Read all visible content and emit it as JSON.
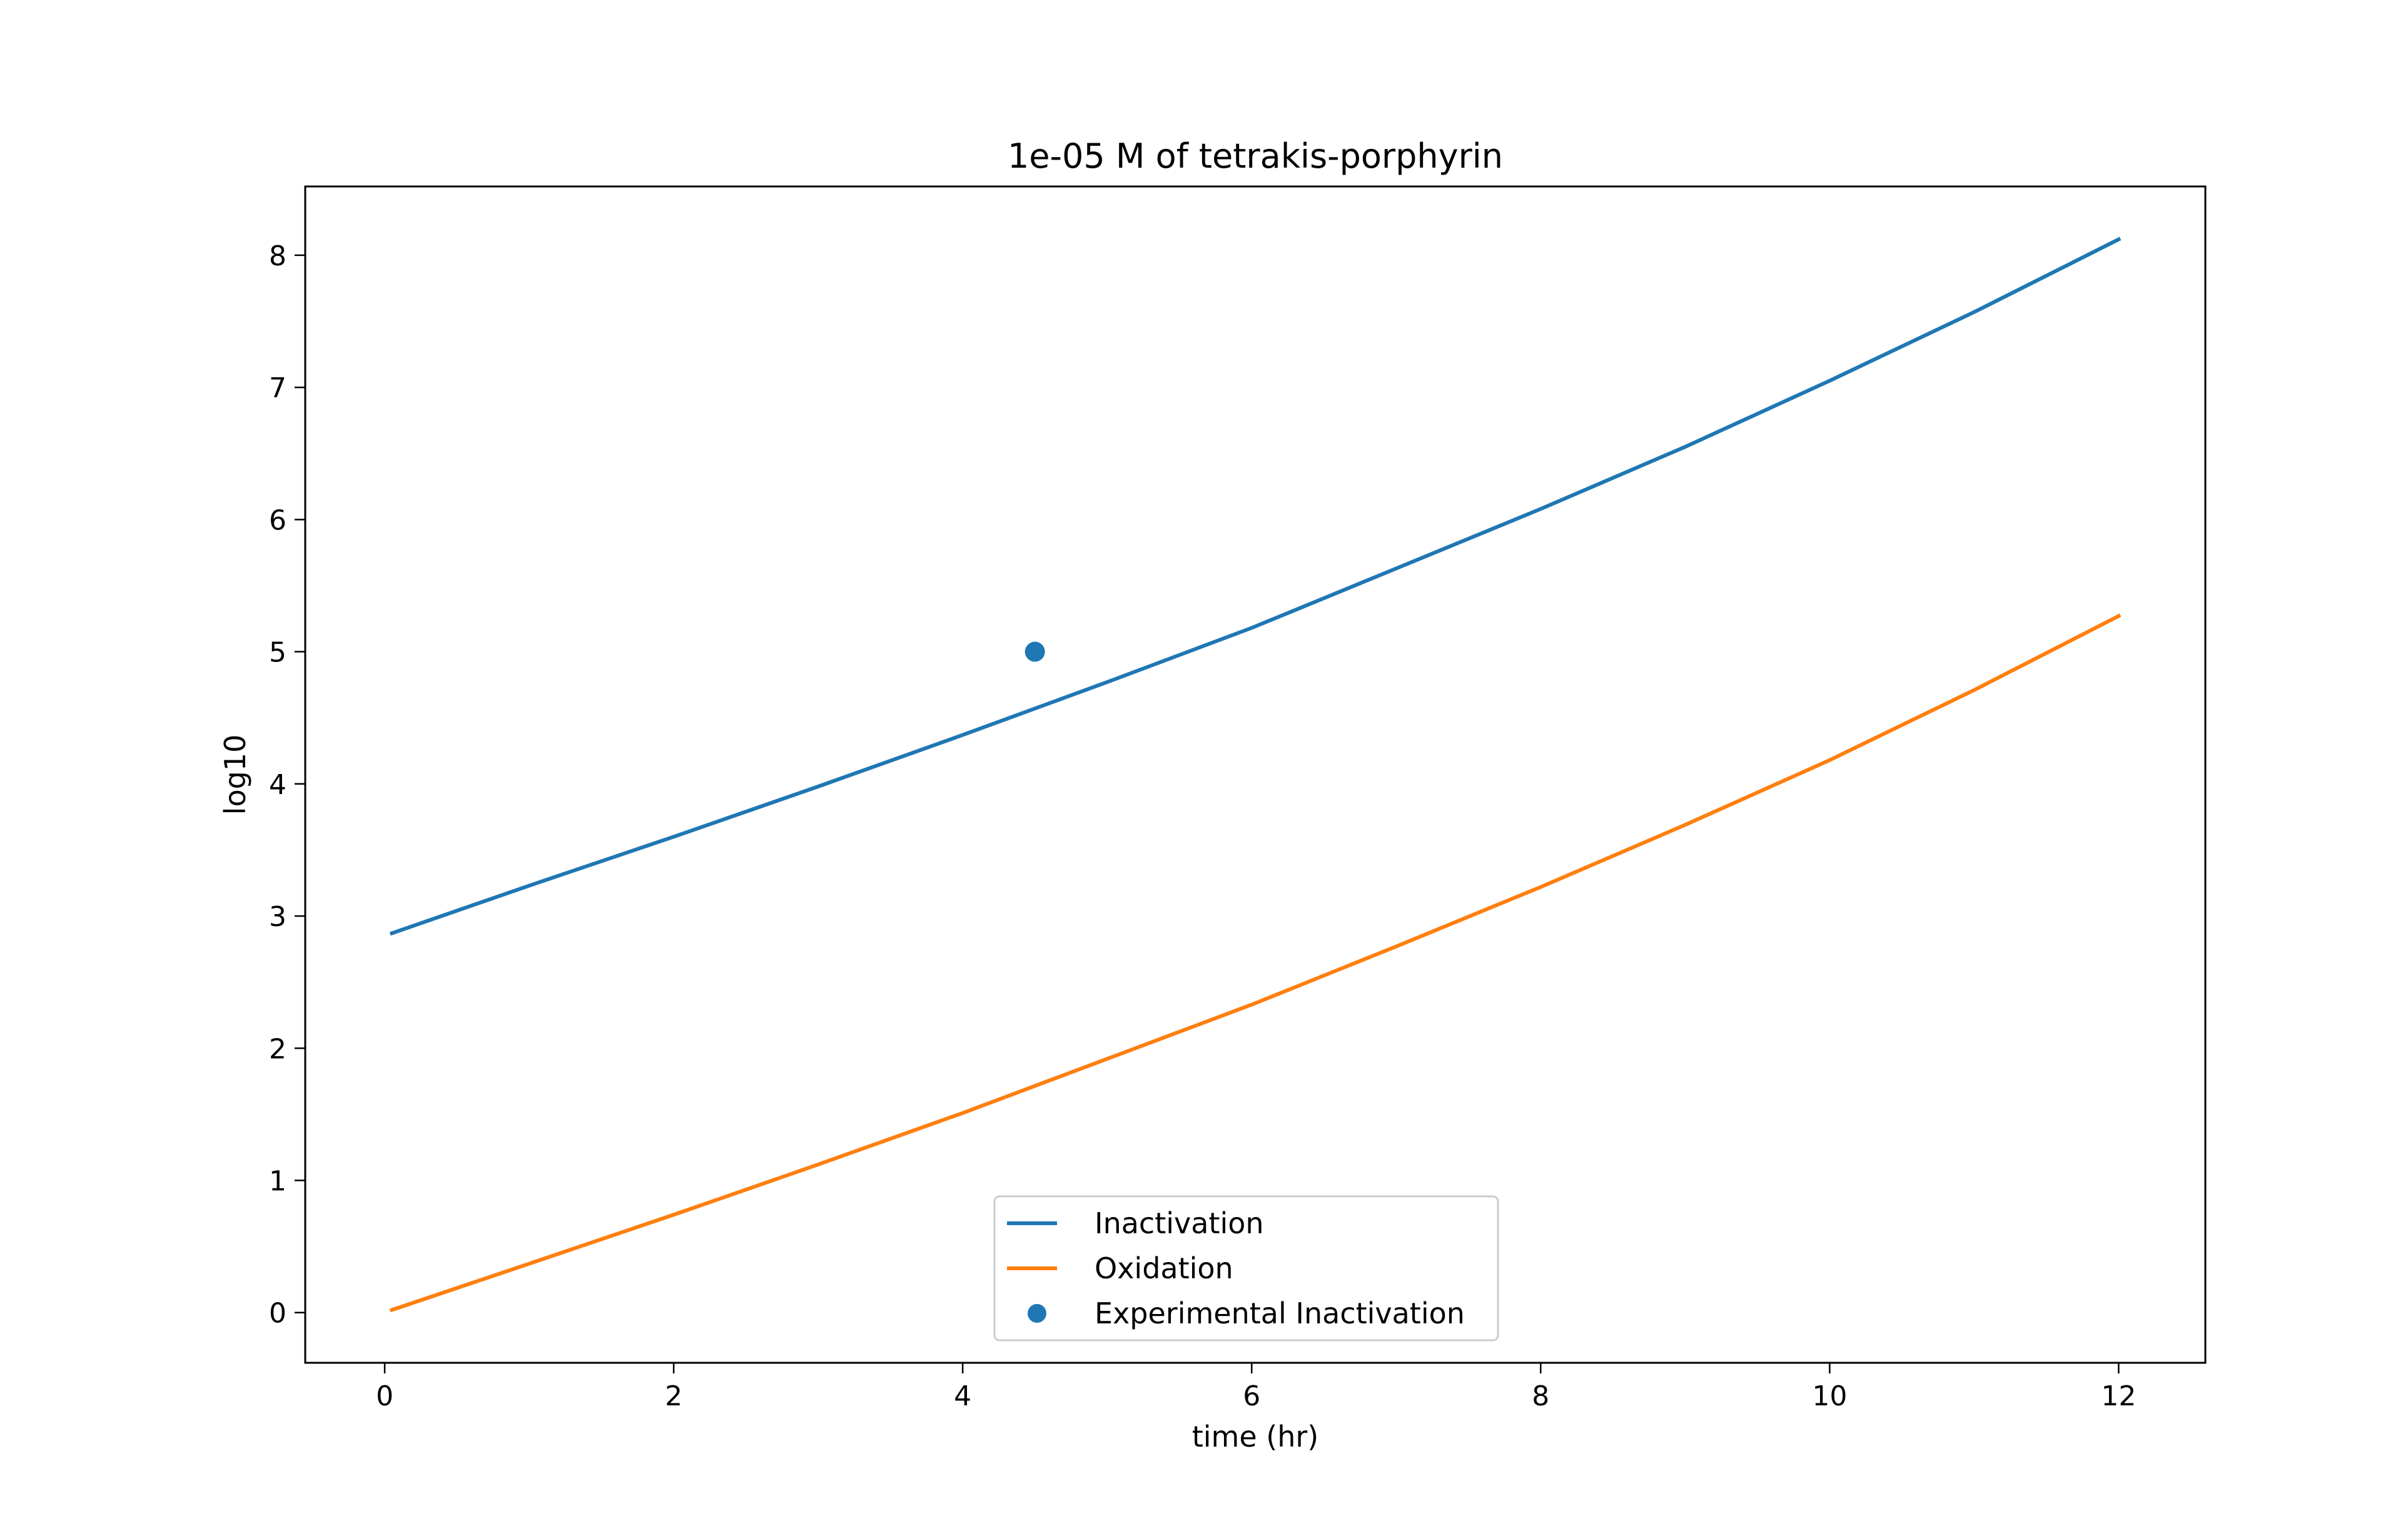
{
  "chart_data": {
    "type": "line",
    "title": "1e-05 M of tetrakis-porphyrin",
    "xlabel": "time (hr)",
    "ylabel": "log10",
    "xlim": [
      -0.55,
      12.6
    ],
    "ylim": [
      -0.38,
      8.52
    ],
    "xticks": [
      0,
      2,
      4,
      6,
      8,
      10,
      12
    ],
    "yticks": [
      0,
      1,
      2,
      3,
      4,
      5,
      6,
      7,
      8
    ],
    "grid": false,
    "legend": {
      "placement": "lower-center"
    },
    "series": [
      {
        "name": "Inactivation",
        "kind": "line",
        "color": "#1f77b4",
        "x": [
          0.05,
          1,
          2,
          3,
          4,
          5,
          6,
          7,
          8,
          9,
          10,
          11,
          12
        ],
        "y": [
          2.87,
          3.23,
          3.6,
          3.98,
          4.37,
          4.77,
          5.18,
          5.63,
          6.08,
          6.55,
          7.05,
          7.57,
          8.12
        ]
      },
      {
        "name": "Oxidation",
        "kind": "line",
        "color": "#ff7f0e",
        "x": [
          0.05,
          1,
          2,
          3,
          4,
          5,
          6,
          7,
          8,
          9,
          10,
          11,
          12
        ],
        "y": [
          0.02,
          0.37,
          0.74,
          1.12,
          1.51,
          1.92,
          2.33,
          2.77,
          3.22,
          3.69,
          4.18,
          4.71,
          5.27
        ]
      },
      {
        "name": "Experimental Inactivation",
        "kind": "scatter",
        "color": "#1f77b4",
        "x": [
          4.5
        ],
        "y": [
          5.0
        ]
      }
    ]
  }
}
